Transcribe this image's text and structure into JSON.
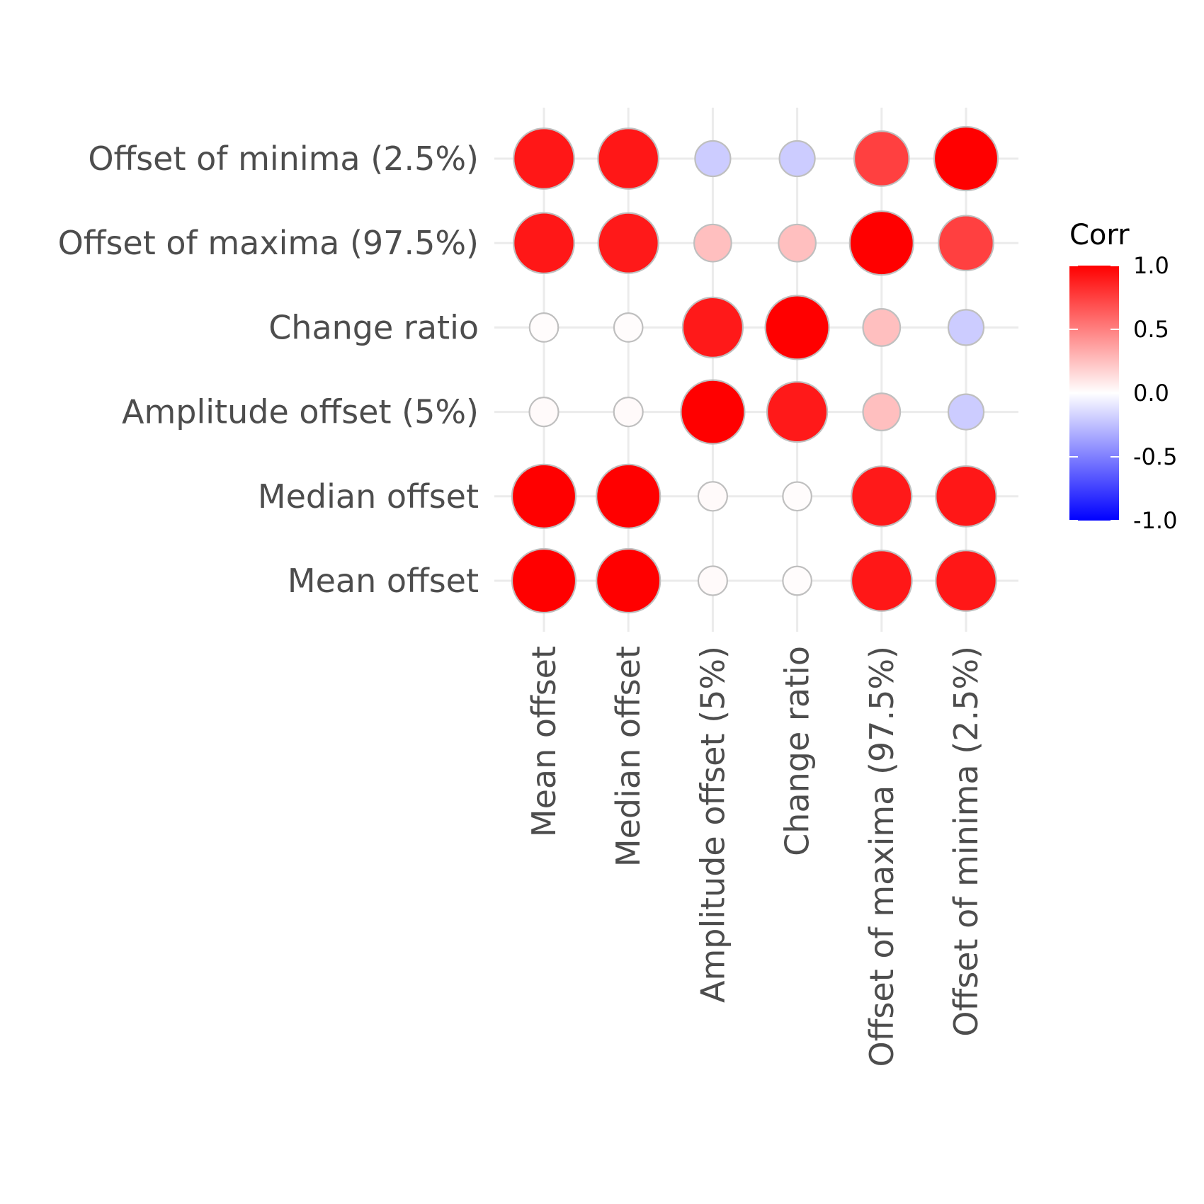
{
  "chart_data": {
    "type": "heatmap",
    "title": "",
    "xlabel": "",
    "ylabel": "",
    "x_categories": [
      "Mean offset",
      "Median offset",
      "Amplitude offset (5%)",
      "Change ratio",
      "Offset of maxima (97.5%)",
      "Offset of minima (2.5%)"
    ],
    "y_categories": [
      "Mean offset",
      "Median offset",
      "Amplitude offset (5%)",
      "Change ratio",
      "Offset of maxima (97.5%)",
      "Offset of minima (2.5%)"
    ],
    "values": [
      [
        1.0,
        1.0,
        0.02,
        0.01,
        0.91,
        0.91
      ],
      [
        1.0,
        1.0,
        0.02,
        0.01,
        0.9,
        0.91
      ],
      [
        0.02,
        0.02,
        1.0,
        0.9,
        0.25,
        -0.2
      ],
      [
        0.01,
        0.01,
        0.9,
        1.0,
        0.25,
        -0.2
      ],
      [
        0.91,
        0.9,
        0.25,
        0.25,
        1.0,
        0.75
      ],
      [
        0.91,
        0.91,
        -0.2,
        -0.2,
        0.75,
        1.0
      ]
    ],
    "value_range": [
      -1,
      1
    ],
    "colors": {
      "low": "#0000ff",
      "mid": "#ffffff",
      "high": "#ff0000",
      "outline": "#bfbfbf",
      "grid": "#ebebeb"
    },
    "legend": {
      "title": "Corr",
      "position": "right",
      "ticks": [
        1.0,
        0.5,
        0.0,
        -0.5,
        -1.0
      ],
      "tick_labels": [
        "1.0",
        "0.5",
        "0.0",
        "-0.5",
        "-1.0"
      ]
    },
    "grid": true
  }
}
